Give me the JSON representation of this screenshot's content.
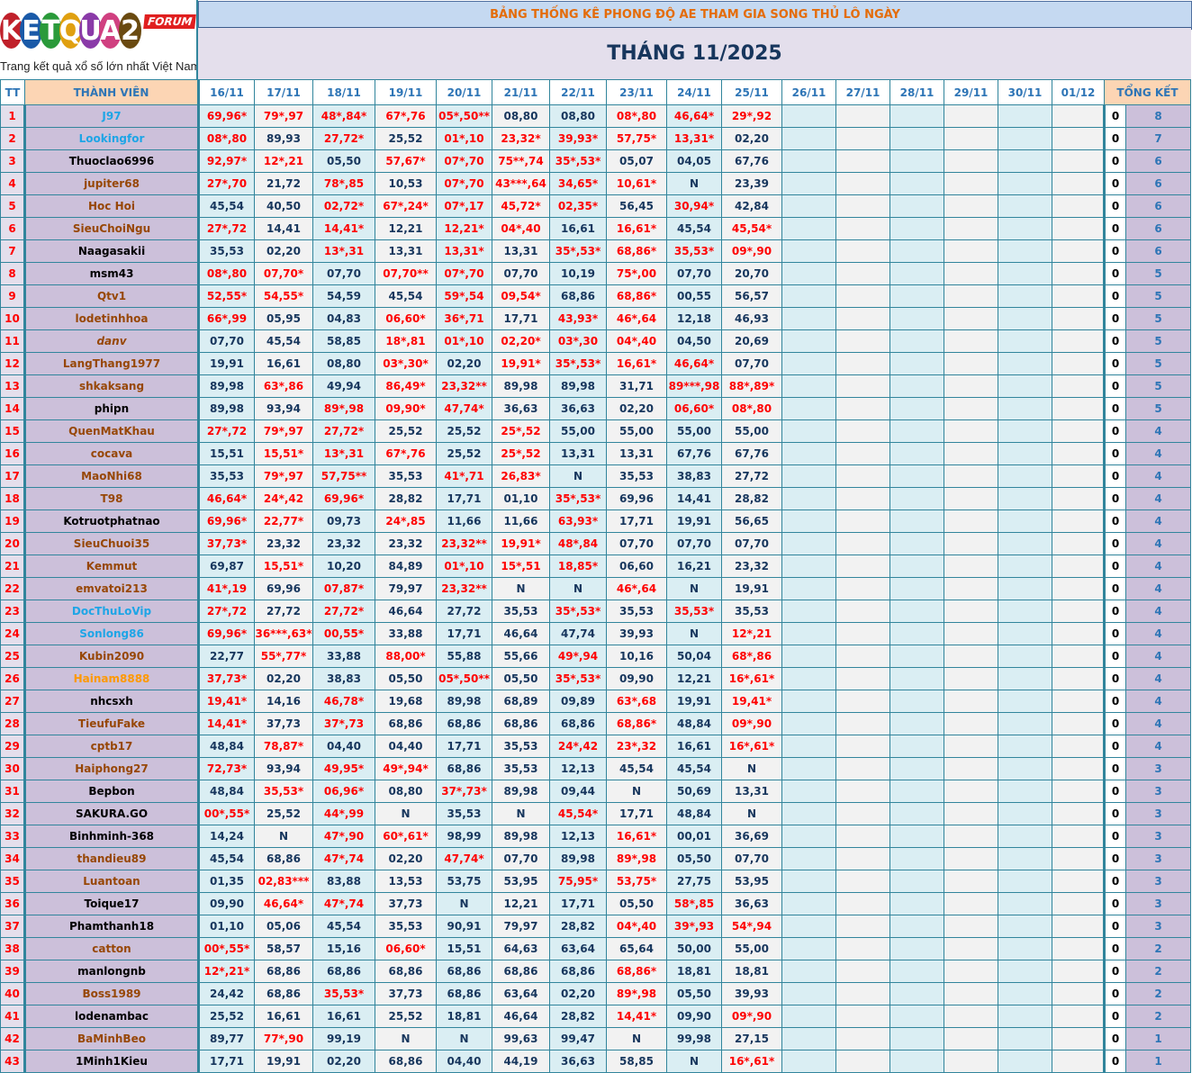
{
  "logo": {
    "text": "KETQUA2",
    "badge": "FORUM",
    "tagline": "Trang kết quả xổ số lớn nhất Việt Nam"
  },
  "title": "BẢNG THỐNG KÊ PHONG ĐỘ AE THAM GIA SONG THỦ LÔ NGÀY",
  "month": "THÁNG 11/2025",
  "colors": {
    "hit": "#ff0000",
    "normal": "#17365d",
    "blue": "#1ea5e6",
    "black": "#000000",
    "brown": "#974706",
    "orange": "#ff9900",
    "border": "#31859c",
    "name_bg": "#ccc0da",
    "header_bg": "#fcd5b4"
  },
  "headers": {
    "tt": "TT",
    "member": "THÀNH VIÊN",
    "summary": "TỔNG KẾT",
    "dates": [
      "16/11",
      "17/11",
      "18/11",
      "19/11",
      "20/11",
      "21/11",
      "22/11",
      "23/11",
      "24/11",
      "25/11",
      "26/11",
      "27/11",
      "28/11",
      "29/11",
      "30/11",
      "01/12"
    ]
  },
  "members": [
    {
      "tt": "1",
      "name": "J97",
      "color": "blue",
      "scores": [
        "69,96*",
        "79*,97",
        "48*,84*",
        "67*,76",
        "05*,50**",
        "08,80",
        "08,80",
        "08*,80",
        "46,64*",
        "29*,92"
      ],
      "zero": "0",
      "total": "8"
    },
    {
      "tt": "2",
      "name": "Lookingfor",
      "color": "blue",
      "scores": [
        "08*,80",
        "89,93",
        "27,72*",
        "25,52",
        "01*,10",
        "23,32*",
        "39,93*",
        "57,75*",
        "13,31*",
        "02,20"
      ],
      "zero": "0",
      "total": "7"
    },
    {
      "tt": "3",
      "name": "Thuoclao6996",
      "color": "black",
      "scores": [
        "92,97*",
        "12*,21",
        "05,50",
        "57,67*",
        "07*,70",
        "75**,74",
        "35*,53*",
        "05,07",
        "04,05",
        "67,76"
      ],
      "zero": "0",
      "total": "6"
    },
    {
      "tt": "4",
      "name": "jupiter68",
      "color": "brown",
      "scores": [
        "27*,70",
        "21,72",
        "78*,85",
        "10,53",
        "07*,70",
        "43***,64",
        "34,65*",
        "10,61*",
        "N",
        "23,39"
      ],
      "zero": "0",
      "total": "6"
    },
    {
      "tt": "5",
      "name": "Hoc Hoi",
      "color": "brown",
      "scores": [
        "45,54",
        "40,50",
        "02,72*",
        "67*,24*",
        "07*,17",
        "45,72*",
        "02,35*",
        "56,45",
        "30,94*",
        "42,84"
      ],
      "zero": "0",
      "total": "6"
    },
    {
      "tt": "6",
      "name": "SieuChoiNgu",
      "color": "brown",
      "scores": [
        "27*,72",
        "14,41",
        "14,41*",
        "12,21",
        "12,21*",
        "04*,40",
        "16,61",
        "16,61*",
        "45,54",
        "45,54*"
      ],
      "zero": "0",
      "total": "6"
    },
    {
      "tt": "7",
      "name": "Naagasakii",
      "color": "black",
      "scores": [
        "35,53",
        "02,20",
        "13*,31",
        "13,31",
        "13,31*",
        "13,31",
        "35*,53*",
        "68,86*",
        "35,53*",
        "09*,90"
      ],
      "zero": "0",
      "total": "6"
    },
    {
      "tt": "8",
      "name": "msm43",
      "color": "black",
      "scores": [
        "08*,80",
        "07,70*",
        "07,70",
        "07,70**",
        "07*,70",
        "07,70",
        "10,19",
        "75*,00",
        "07,70",
        "20,70"
      ],
      "zero": "0",
      "total": "5"
    },
    {
      "tt": "9",
      "name": "Qtv1",
      "color": "brown",
      "scores": [
        "52,55*",
        "54,55*",
        "54,59",
        "45,54",
        "59*,54",
        "09,54*",
        "68,86",
        "68,86*",
        "00,55",
        "56,57"
      ],
      "zero": "0",
      "total": "5"
    },
    {
      "tt": "10",
      "name": "lodetinhhoa",
      "color": "brown",
      "scores": [
        "66*,99",
        "05,95",
        "04,83",
        "06,60*",
        "36*,71",
        "17,71",
        "43,93*",
        "46*,64",
        "12,18",
        "46,93"
      ],
      "zero": "0",
      "total": "5"
    },
    {
      "tt": "11",
      "name": "danv",
      "color": "brown",
      "italic": true,
      "scores": [
        "07,70",
        "45,54",
        "58,85",
        "18*,81",
        "01*,10",
        "02,20*",
        "03*,30",
        "04*,40",
        "04,50",
        "20,69"
      ],
      "zero": "0",
      "total": "5"
    },
    {
      "tt": "12",
      "name": "LangThang1977",
      "color": "brown",
      "scores": [
        "19,91",
        "16,61",
        "08,80",
        "03*,30*",
        "02,20",
        "19,91*",
        "35*,53*",
        "16,61*",
        "46,64*",
        "07,70"
      ],
      "zero": "0",
      "total": "5"
    },
    {
      "tt": "13",
      "name": "shkaksang",
      "color": "brown",
      "scores": [
        "89,98",
        "63*,86",
        "49,94",
        "86,49*",
        "23,32**",
        "89,98",
        "89,98",
        "31,71",
        "89***,98",
        "88*,89*"
      ],
      "zero": "0",
      "total": "5"
    },
    {
      "tt": "14",
      "name": "phipn",
      "color": "black",
      "scores": [
        "89,98",
        "93,94",
        "89*,98",
        "09,90*",
        "47,74*",
        "36,63",
        "36,63",
        "02,20",
        "06,60*",
        "08*,80"
      ],
      "zero": "0",
      "total": "5"
    },
    {
      "tt": "15",
      "name": "QuenMatKhau",
      "color": "brown",
      "scores": [
        "27*,72",
        "79*,97",
        "27,72*",
        "25,52",
        "25,52",
        "25*,52",
        "55,00",
        "55,00",
        "55,00",
        "55,00"
      ],
      "zero": "0",
      "total": "4"
    },
    {
      "tt": "16",
      "name": "cocava",
      "color": "brown",
      "scores": [
        "15,51",
        "15,51*",
        "13*,31",
        "67*,76",
        "25,52",
        "25*,52",
        "13,31",
        "13,31",
        "67,76",
        "67,76"
      ],
      "zero": "0",
      "total": "4"
    },
    {
      "tt": "17",
      "name": "MaoNhi68",
      "color": "brown",
      "scores": [
        "35,53",
        "79*,97",
        "57,75**",
        "35,53",
        "41*,71",
        "26,83*",
        "N",
        "35,53",
        "38,83",
        "27,72"
      ],
      "zero": "0",
      "total": "4"
    },
    {
      "tt": "18",
      "name": "T98",
      "color": "brown",
      "scores": [
        "46,64*",
        "24*,42",
        "69,96*",
        "28,82",
        "17,71",
        "01,10",
        "35*,53*",
        "69,96",
        "14,41",
        "28,82"
      ],
      "zero": "0",
      "total": "4"
    },
    {
      "tt": "19",
      "name": "Kotruotphatnao",
      "color": "black",
      "scores": [
        "69,96*",
        "22,77*",
        "09,73",
        "24*,85",
        "11,66",
        "11,66",
        "63,93*",
        "17,71",
        "19,91",
        "56,65"
      ],
      "zero": "0",
      "total": "4"
    },
    {
      "tt": "20",
      "name": "SieuChuoi35",
      "color": "brown",
      "scores": [
        "37,73*",
        "23,32",
        "23,32",
        "23,32",
        "23,32**",
        "19,91*",
        "48*,84",
        "07,70",
        "07,70",
        "07,70"
      ],
      "zero": "0",
      "total": "4"
    },
    {
      "tt": "21",
      "name": "Kemmut",
      "color": "brown",
      "scores": [
        "69,87",
        "15,51*",
        "10,20",
        "84,89",
        "01*,10",
        "15*,51",
        "18,85*",
        "06,60",
        "16,21",
        "23,32"
      ],
      "zero": "0",
      "total": "4"
    },
    {
      "tt": "22",
      "name": "emvatoi213",
      "color": "brown",
      "scores": [
        "41*,19",
        "69,96",
        "07,87*",
        "79,97",
        "23,32**",
        "N",
        "N",
        "46*,64",
        "N",
        "19,91"
      ],
      "zero": "0",
      "total": "4"
    },
    {
      "tt": "23",
      "name": "DocThuLoVip",
      "color": "blue",
      "scores": [
        "27*,72",
        "27,72",
        "27,72*",
        "46,64",
        "27,72",
        "35,53",
        "35*,53*",
        "35,53",
        "35,53*",
        "35,53"
      ],
      "zero": "0",
      "total": "4"
    },
    {
      "tt": "24",
      "name": "Sonlong86",
      "color": "blue",
      "scores": [
        "69,96*",
        "36***,63*",
        "00,55*",
        "33,88",
        "17,71",
        "46,64",
        "47,74",
        "39,93",
        "N",
        "12*,21"
      ],
      "zero": "0",
      "total": "4"
    },
    {
      "tt": "25",
      "name": "Kubin2090",
      "color": "brown",
      "scores": [
        "22,77",
        "55*,77*",
        "33,88",
        "88,00*",
        "55,88",
        "55,66",
        "49*,94",
        "10,16",
        "50,04",
        "68*,86"
      ],
      "zero": "0",
      "total": "4"
    },
    {
      "tt": "26",
      "name": "Hainam8888",
      "color": "orange",
      "scores": [
        "37,73*",
        "02,20",
        "38,83",
        "05,50",
        "05*,50**",
        "05,50",
        "35*,53*",
        "09,90",
        "12,21",
        "16*,61*"
      ],
      "zero": "0",
      "total": "4"
    },
    {
      "tt": "27",
      "name": "nhcsxh",
      "color": "black",
      "scores": [
        "19,41*",
        "14,16",
        "46,78*",
        "19,68",
        "89,98",
        "68,89",
        "09,89",
        "63*,68",
        "19,91",
        "19,41*"
      ],
      "zero": "0",
      "total": "4"
    },
    {
      "tt": "28",
      "name": "TieufuFake",
      "color": "brown",
      "scores": [
        "14,41*",
        "37,73",
        "37*,73",
        "68,86",
        "68,86",
        "68,86",
        "68,86",
        "68,86*",
        "48,84",
        "09*,90"
      ],
      "zero": "0",
      "total": "4"
    },
    {
      "tt": "29",
      "name": "cptb17",
      "color": "brown",
      "scores": [
        "48,84",
        "78,87*",
        "04,40",
        "04,40",
        "17,71",
        "35,53",
        "24*,42",
        "23*,32",
        "16,61",
        "16*,61*"
      ],
      "zero": "0",
      "total": "4"
    },
    {
      "tt": "30",
      "name": "Haiphong27",
      "color": "brown",
      "scores": [
        "72,73*",
        "93,94",
        "49,95*",
        "49*,94*",
        "68,86",
        "35,53",
        "12,13",
        "45,54",
        "45,54",
        "N"
      ],
      "zero": "0",
      "total": "3"
    },
    {
      "tt": "31",
      "name": "Bepbon",
      "color": "black",
      "scores": [
        "48,84",
        "35,53*",
        "06,96*",
        "08,80",
        "37*,73*",
        "89,98",
        "09,44",
        "N",
        "50,69",
        "13,31"
      ],
      "zero": "0",
      "total": "3"
    },
    {
      "tt": "32",
      "name": "SAKURA.GO",
      "color": "black",
      "scores": [
        "00*,55*",
        "25,52",
        "44*,99",
        "N",
        "35,53",
        "N",
        "45,54*",
        "17,71",
        "48,84",
        "N"
      ],
      "zero": "0",
      "total": "3"
    },
    {
      "tt": "33",
      "name": "Binhminh-368",
      "color": "black",
      "scores": [
        "14,24",
        "N",
        "47*,90",
        "60*,61*",
        "98,99",
        "89,98",
        "12,13",
        "16,61*",
        "00,01",
        "36,69"
      ],
      "zero": "0",
      "total": "3"
    },
    {
      "tt": "34",
      "name": "thandieu89",
      "color": "brown",
      "scores": [
        "45,54",
        "68,86",
        "47*,74",
        "02,20",
        "47,74*",
        "07,70",
        "89,98",
        "89*,98",
        "05,50",
        "07,70"
      ],
      "zero": "0",
      "total": "3"
    },
    {
      "tt": "35",
      "name": "Luantoan",
      "color": "brown",
      "scores": [
        "01,35",
        "02,83***",
        "83,88",
        "13,53",
        "53,75",
        "53,95",
        "75,95*",
        "53,75*",
        "27,75",
        "53,95"
      ],
      "zero": "0",
      "total": "3"
    },
    {
      "tt": "36",
      "name": "Toique17",
      "color": "black",
      "scores": [
        "09,90",
        "46,64*",
        "47*,74",
        "37,73",
        "N",
        "12,21",
        "17,71",
        "05,50",
        "58*,85",
        "36,63"
      ],
      "zero": "0",
      "total": "3"
    },
    {
      "tt": "37",
      "name": "Phamthanh18",
      "color": "black",
      "scores": [
        "01,10",
        "05,06",
        "45,54",
        "35,53",
        "90,91",
        "79,97",
        "28,82",
        "04*,40",
        "39*,93",
        "54*,94"
      ],
      "zero": "0",
      "total": "3"
    },
    {
      "tt": "38",
      "name": "catton",
      "color": "brown",
      "scores": [
        "00*,55*",
        "58,57",
        "15,16",
        "06,60*",
        "15,51",
        "64,63",
        "63,64",
        "65,64",
        "50,00",
        "55,00"
      ],
      "zero": "0",
      "total": "2"
    },
    {
      "tt": "39",
      "name": "manlongnb",
      "color": "black",
      "scores": [
        "12*,21*",
        "68,86",
        "68,86",
        "68,86",
        "68,86",
        "68,86",
        "68,86",
        "68,86*",
        "18,81",
        "18,81"
      ],
      "zero": "0",
      "total": "2"
    },
    {
      "tt": "40",
      "name": "Boss1989",
      "color": "brown",
      "scores": [
        "24,42",
        "68,86",
        "35,53*",
        "37,73",
        "68,86",
        "63,64",
        "02,20",
        "89*,98",
        "05,50",
        "39,93"
      ],
      "zero": "0",
      "total": "2"
    },
    {
      "tt": "41",
      "name": "lodenambac",
      "color": "black",
      "scores": [
        "25,52",
        "16,61",
        "16,61",
        "25,52",
        "18,81",
        "46,64",
        "28,82",
        "14,41*",
        "09,90",
        "09*,90"
      ],
      "zero": "0",
      "total": "2"
    },
    {
      "tt": "42",
      "name": "BaMinhBeo",
      "color": "brown",
      "scores": [
        "89,77",
        "77*,90",
        "99,19",
        "N",
        "N",
        "99,63",
        "99,47",
        "N",
        "99,98",
        "27,15"
      ],
      "zero": "0",
      "total": "1"
    },
    {
      "tt": "43",
      "name": "1Minh1Kieu",
      "color": "black",
      "scores": [
        "17,71",
        "19,91",
        "02,20",
        "68,86",
        "04,40",
        "44,19",
        "36,63",
        "58,85",
        "N",
        "16*,61*"
      ],
      "zero": "0",
      "total": "1"
    }
  ]
}
